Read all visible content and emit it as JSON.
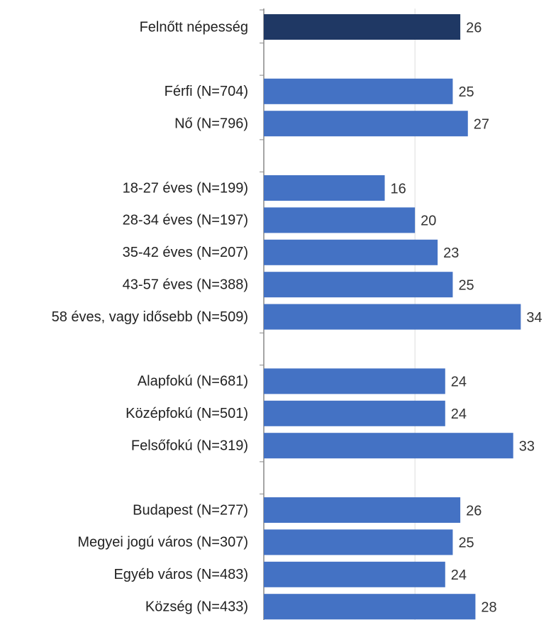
{
  "chart_data": {
    "type": "barh",
    "categories": [
      "Felnőtt népesség",
      null,
      "Férfi (N=704)",
      "Nő (N=796)",
      null,
      "18-27 éves (N=199)",
      "28-34 éves (N=197)",
      "35-42 éves (N=207)",
      "43-57 éves (N=388)",
      "58 éves, vagy idősebb (N=509)",
      null,
      "Alapfokú (N=681)",
      "Középfokú (N=501)",
      "Felsőfokú (N=319)",
      null,
      "Budapest (N=277)",
      "Megyei jogú város (N=307)",
      "Egyéb város (N=483)",
      "Község (N=433)"
    ],
    "values": [
      26,
      null,
      25,
      27,
      null,
      16,
      20,
      23,
      25,
      34,
      null,
      24,
      24,
      33,
      null,
      26,
      25,
      24,
      28
    ],
    "colors": [
      "#1f3864",
      null,
      "#4472c4",
      "#4472c4",
      null,
      "#4472c4",
      "#4472c4",
      "#4472c4",
      "#4472c4",
      "#4472c4",
      null,
      "#4472c4",
      "#4472c4",
      "#4472c4",
      null,
      "#4472c4",
      "#4472c4",
      "#4472c4",
      "#4472c4"
    ],
    "xlim": [
      0,
      38
    ],
    "xticks": [
      0,
      20
    ],
    "grid": true
  }
}
